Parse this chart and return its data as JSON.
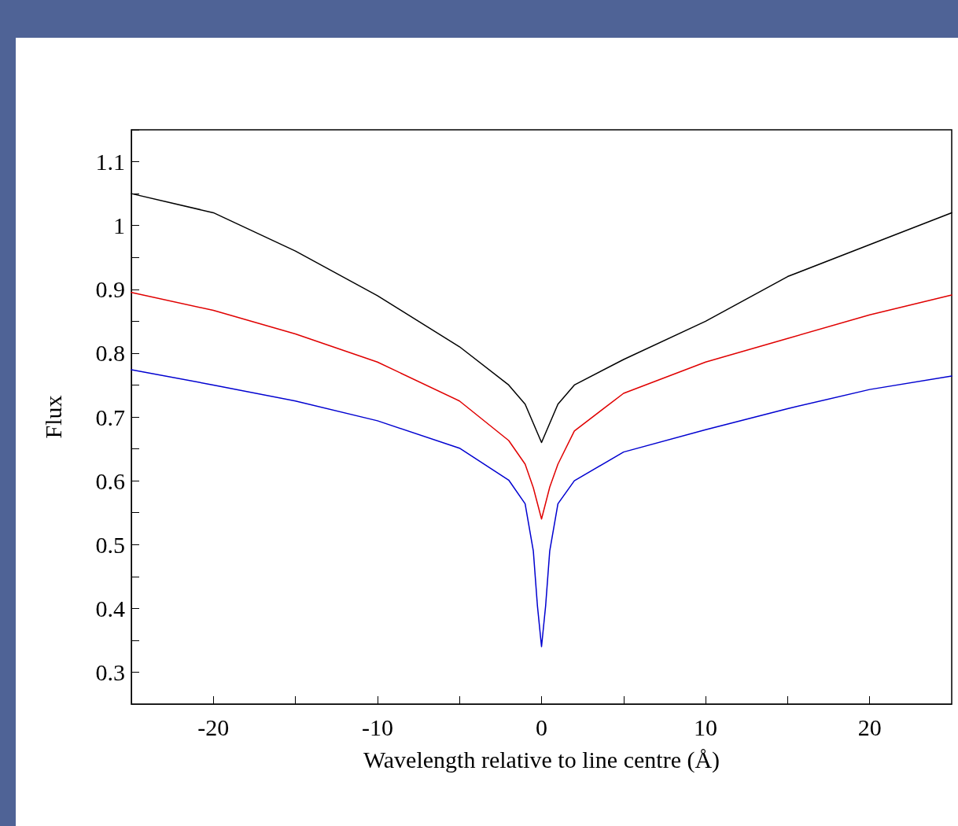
{
  "chart_data": {
    "type": "line",
    "xlabel": "Wavelength relative to line centre (Å)",
    "ylabel": "Flux",
    "xlim": [
      -25,
      25
    ],
    "ylim": [
      0.25,
      1.15
    ],
    "xticks": [
      -20,
      {
        "value": -15,
        "label": null
      },
      -10,
      {
        "value": -5,
        "label": null
      },
      0,
      {
        "value": 5,
        "label": null
      },
      10,
      {
        "value": 15,
        "label": null
      },
      20
    ],
    "yticks": [
      {
        "value": 0.25,
        "label": null
      },
      0.3,
      {
        "value": 0.35,
        "label": null
      },
      0.4,
      {
        "value": 0.45,
        "label": null
      },
      0.5,
      {
        "value": 0.55,
        "label": null
      },
      0.6,
      {
        "value": 0.65,
        "label": null
      },
      0.7,
      {
        "value": 0.75,
        "label": null
      },
      0.8,
      {
        "value": 0.85,
        "label": null
      },
      0.9,
      {
        "value": 0.95,
        "label": null
      },
      1,
      {
        "value": 1.05,
        "label": null
      },
      1.1,
      {
        "value": 1.15,
        "label": null
      }
    ],
    "grid": false,
    "marker": "none",
    "line_style": "solid",
    "series": [
      {
        "color": "#000000",
        "x": [
          -25,
          -20,
          -15,
          -10,
          -5,
          -2,
          -1,
          0,
          1,
          2,
          5,
          10,
          15,
          20,
          25
        ],
        "values": [
          1.05,
          1.02,
          0.96,
          0.89,
          0.81,
          0.75,
          0.72,
          0.66,
          0.72,
          0.75,
          0.79,
          0.85,
          0.92,
          0.97,
          1.02
        ]
      },
      {
        "color": "#e00000",
        "x": [
          -25,
          -20,
          -15,
          -10,
          -5,
          -2,
          -1,
          -0.5,
          0,
          0.5,
          1,
          2,
          5,
          10,
          15,
          20,
          25
        ],
        "values": [
          0.895,
          0.867,
          0.83,
          0.786,
          0.725,
          0.663,
          0.626,
          0.589,
          0.54,
          0.59,
          0.626,
          0.678,
          0.737,
          0.786,
          0.823,
          0.86,
          0.891
        ]
      },
      {
        "color": "#0000d0",
        "x": [
          -25,
          -20,
          -15,
          -10,
          -5,
          -2,
          -1,
          -0.5,
          -0.25,
          0,
          0.25,
          0.5,
          1,
          2,
          5,
          10,
          15,
          20,
          25
        ],
        "values": [
          0.774,
          0.75,
          0.725,
          0.694,
          0.651,
          0.601,
          0.564,
          0.49,
          0.404,
          0.34,
          0.404,
          0.49,
          0.564,
          0.6,
          0.645,
          0.68,
          0.713,
          0.743,
          0.764
        ]
      }
    ]
  }
}
